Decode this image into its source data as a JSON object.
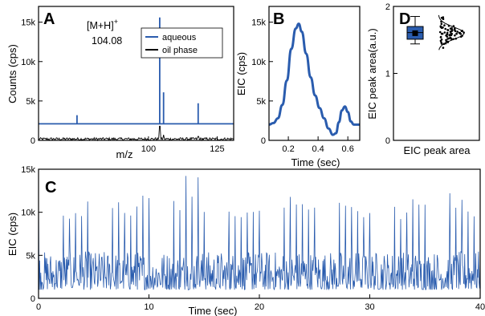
{
  "chart_data": [
    {
      "panel": "A",
      "type": "line",
      "xlabel": "m/z",
      "ylabel": "Counts (cps)",
      "xlim": [
        60,
        131
      ],
      "ylim": [
        0,
        17000
      ],
      "xticks": [
        100,
        125
      ],
      "yticks": [
        0,
        5000,
        10000,
        15000
      ],
      "ytick_labels": [
        "0",
        "5k",
        "10k",
        "15k"
      ],
      "annotation_base": "[M+H]",
      "annotation_sup": "+",
      "annotation_value": "104.08",
      "legend": [
        "aqueous",
        "oil phase"
      ],
      "legend_position": "top-right",
      "series": [
        {
          "name": "aqueous",
          "color": "#2a5cae",
          "baseline": 2100,
          "peaks": [
            {
              "x": 74,
              "y": 3200
            },
            {
              "x": 104.08,
              "y": 15600
            },
            {
              "x": 105.5,
              "y": 6100
            },
            {
              "x": 118.1,
              "y": 4700
            }
          ]
        },
        {
          "name": "oil phase",
          "color": "#000000",
          "baseline": 0,
          "peaks": [
            {
              "x": 104.08,
              "y": 1800
            },
            {
              "x": 105.5,
              "y": 700
            },
            {
              "x": 118.1,
              "y": 500
            }
          ]
        }
      ]
    },
    {
      "panel": "B",
      "type": "line",
      "xlabel": "Time (sec)",
      "ylabel": "EIC (cps)",
      "xlim": [
        0.07,
        0.68
      ],
      "ylim": [
        0,
        17000
      ],
      "xticks": [
        0.2,
        0.4,
        0.6
      ],
      "yticks": [
        0,
        5000,
        10000,
        15000
      ],
      "ytick_labels": [
        "0",
        "5k",
        "10k",
        "15k"
      ],
      "series": [
        {
          "color": "#2a5cae",
          "x": [
            0.07,
            0.1,
            0.13,
            0.16,
            0.19,
            0.22,
            0.25,
            0.27,
            0.29,
            0.32,
            0.35,
            0.38,
            0.41,
            0.44,
            0.47,
            0.5,
            0.52,
            0.54,
            0.56,
            0.58,
            0.6,
            0.62,
            0.64,
            0.66,
            0.68
          ],
          "y": [
            2000,
            2200,
            2800,
            4500,
            7600,
            11600,
            14200,
            14800,
            13800,
            11000,
            8000,
            5700,
            4100,
            2800,
            1500,
            700,
            900,
            2300,
            3800,
            4300,
            3600,
            2400,
            2000,
            2000,
            2000
          ]
        }
      ]
    },
    {
      "panel": "D",
      "type": "box",
      "xlabel": "EIC peak area",
      "ylabel": "EIC peak area(a.u.)",
      "ylim": [
        0,
        2
      ],
      "yticks": [
        0,
        1,
        2
      ],
      "box": {
        "whisker_low": 1.44,
        "q1": 1.51,
        "median": 1.61,
        "mean": 1.6,
        "q3": 1.7,
        "whisker_high": 1.85
      },
      "points_range": [
        1.35,
        1.88
      ],
      "color": "#2a5cae"
    },
    {
      "panel": "C",
      "type": "line",
      "xlabel": "Time (sec)",
      "ylabel": "EIC (cps)",
      "xlim": [
        0,
        40
      ],
      "ylim": [
        0,
        15000
      ],
      "xticks": [
        0,
        10,
        20,
        30,
        40
      ],
      "yticks": [
        0,
        5000,
        10000,
        15000
      ],
      "ytick_labels": [
        "0",
        "5k",
        "10k",
        "15k"
      ],
      "series": [
        {
          "color": "#2a5cae",
          "peak_count": 72,
          "peak_range": [
            9200,
            14300
          ],
          "baseline_range": [
            1000,
            5500
          ]
        }
      ]
    }
  ]
}
